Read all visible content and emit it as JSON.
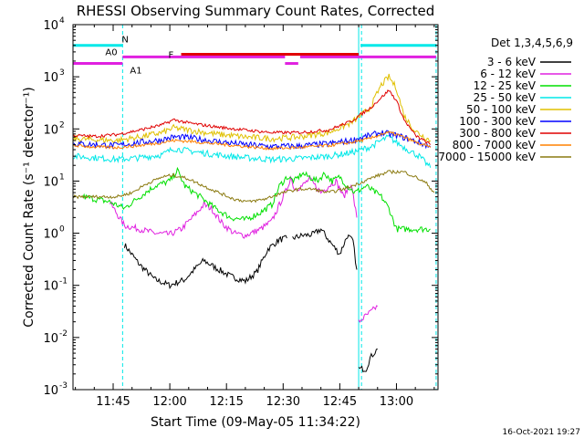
{
  "chart_data": {
    "type": "line",
    "title": "RHESSI Observing Summary Count Rates, Corrected",
    "xlabel": "Start Time (09-May-05 11:34:22)",
    "ylabel": "Corrected Count Rate (s⁻¹ detector⁻¹)",
    "y_scale": "log",
    "xlim": [
      "11:34:22",
      "13:11:00"
    ],
    "ylim": [
      0.001,
      10000
    ],
    "x_ticks": [
      "11:45",
      "12:00",
      "12:15",
      "12:30",
      "12:45",
      "13:00"
    ],
    "y_ticks": [
      {
        "value": 0.001,
        "base": "10",
        "exp": "-3"
      },
      {
        "value": 0.01,
        "base": "10",
        "exp": "-2"
      },
      {
        "value": 0.1,
        "base": "10",
        "exp": "-1"
      },
      {
        "value": 1,
        "base": "10",
        "exp": "0"
      },
      {
        "value": 10,
        "base": "10",
        "exp": "1"
      },
      {
        "value": 100,
        "base": "10",
        "exp": "2"
      },
      {
        "value": 1000,
        "base": "10",
        "exp": "3"
      },
      {
        "value": 10000,
        "base": "10",
        "exp": "4"
      }
    ],
    "legend_title": "Det 1,3,4,5,6,9",
    "legend_position": "right",
    "grid": false,
    "series": [
      {
        "name": "3 - 6 keV",
        "color": "#000000",
        "points": [
          [
            "11:48:00",
            0.6
          ],
          [
            "11:52:00",
            0.25
          ],
          [
            "11:56:00",
            0.13
          ],
          [
            "12:00:00",
            0.1
          ],
          [
            "12:04:00",
            0.13
          ],
          [
            "12:07:00",
            0.22
          ],
          [
            "12:09:00",
            0.3
          ],
          [
            "12:12:00",
            0.22
          ],
          [
            "12:16:00",
            0.15
          ],
          [
            "12:20:00",
            0.12
          ],
          [
            "12:23:00",
            0.18
          ],
          [
            "12:26:00",
            0.5
          ],
          [
            "12:29:00",
            0.75
          ],
          [
            "12:31:00",
            0.8
          ],
          [
            "null",
            null
          ],
          [
            "12:32:30",
            0.8
          ],
          [
            "12:35:00",
            0.9
          ],
          [
            "12:38:00",
            0.95
          ],
          [
            "12:40:00",
            1.2
          ],
          [
            "12:43:00",
            0.6
          ],
          [
            "12:45:00",
            0.4
          ],
          [
            "12:47:00",
            0.9
          ],
          [
            "12:48:30",
            0.7
          ],
          [
            "12:49:30",
            0.2
          ],
          [
            "null",
            null
          ],
          [
            "12:50:00",
            0.0025
          ],
          [
            "12:52:00",
            0.0025
          ],
          [
            "12:53:00",
            0.004
          ],
          [
            "12:54:00",
            0.005
          ],
          [
            "12:55:00",
            0.006
          ]
        ]
      },
      {
        "name": "6 - 12 keV",
        "color": "#e020e0",
        "points": [
          [
            "11:44:00",
            4.0
          ],
          [
            "11:48:00",
            1.4
          ],
          [
            "11:52:00",
            1.2
          ],
          [
            "11:56:00",
            1.0
          ],
          [
            "12:00:00",
            0.95
          ],
          [
            "12:03:00",
            1.2
          ],
          [
            "12:06:00",
            2.0
          ],
          [
            "12:09:00",
            3.5
          ],
          [
            "12:11:00",
            3.0
          ],
          [
            "12:14:00",
            1.5
          ],
          [
            "12:17:00",
            1.0
          ],
          [
            "12:20:00",
            0.9
          ],
          [
            "12:24:00",
            1.2
          ],
          [
            "12:27:00",
            1.7
          ],
          [
            "12:29:00",
            3.5
          ],
          [
            "12:31:00",
            7.0
          ],
          [
            "12:32:00",
            12.0
          ],
          [
            "12:33:00",
            7.0
          ],
          [
            "12:35:00",
            8.0
          ],
          [
            "12:37:00",
            11.0
          ],
          [
            "12:40:00",
            6.0
          ],
          [
            "12:42:00",
            8.0
          ],
          [
            "12:44:00",
            10.0
          ],
          [
            "12:46:00",
            5.0
          ],
          [
            "12:48:00",
            9.0
          ],
          [
            "12:49:30",
            2.0
          ],
          [
            "null",
            null
          ],
          [
            "12:50:00",
            0.02
          ],
          [
            "12:53:00",
            0.03
          ],
          [
            "12:55:00",
            0.04
          ]
        ]
      },
      {
        "name": "12 - 25 keV",
        "color": "#00e000",
        "points": [
          [
            "11:37:00",
            5.0
          ],
          [
            "11:44:00",
            4.0
          ],
          [
            "11:48:00",
            3.0
          ],
          [
            "11:52:00",
            5.0
          ],
          [
            "11:56:00",
            8.0
          ],
          [
            "12:00:00",
            10.0
          ],
          [
            "12:02:00",
            16.0
          ],
          [
            "12:04:00",
            8.0
          ],
          [
            "12:08:00",
            5.0
          ],
          [
            "12:12:00",
            3.0
          ],
          [
            "12:16:00",
            2.0
          ],
          [
            "12:20:00",
            1.8
          ],
          [
            "12:24:00",
            2.5
          ],
          [
            "12:27:00",
            3.5
          ],
          [
            "12:29:00",
            8.0
          ],
          [
            "12:31:00",
            12.0
          ],
          [
            "12:33:00",
            10.0
          ],
          [
            "12:35:00",
            14.0
          ],
          [
            "12:37:00",
            12.0
          ],
          [
            "12:39:00",
            10.0
          ],
          [
            "12:41:00",
            14.0
          ],
          [
            "12:43:00",
            10.0
          ],
          [
            "12:45:00",
            12.0
          ],
          [
            "12:47:00",
            8.0
          ],
          [
            "12:49:00",
            6.0
          ],
          [
            "12:52:00",
            8.0
          ],
          [
            "12:56:00",
            5.0
          ],
          [
            "12:58:00",
            3.0
          ],
          [
            "13:00:00",
            1.2
          ],
          [
            "13:09:00",
            1.2
          ]
        ]
      },
      {
        "name": "25 - 50 keV",
        "color": "#00e8e8",
        "points": [
          [
            "11:34:30",
            30
          ],
          [
            "11:40:00",
            28
          ],
          [
            "11:46:00",
            26
          ],
          [
            "11:52:00",
            28
          ],
          [
            "11:58:00",
            32
          ],
          [
            "12:01:00",
            42
          ],
          [
            "12:05:00",
            38
          ],
          [
            "12:12:00",
            32
          ],
          [
            "12:20:00",
            28
          ],
          [
            "12:27:00",
            26
          ],
          [
            "12:34:00",
            27
          ],
          [
            "12:42:00",
            30
          ],
          [
            "12:48:00",
            35
          ],
          [
            "12:53:00",
            45
          ],
          [
            "12:56:00",
            60
          ],
          [
            "12:58:00",
            70
          ],
          [
            "13:00:00",
            55
          ],
          [
            "13:03:00",
            40
          ],
          [
            "13:06:00",
            30
          ],
          [
            "13:09:00",
            18
          ]
        ]
      },
      {
        "name": "50 - 100 keV",
        "color": "#e0c000",
        "points": [
          [
            "11:34:30",
            65
          ],
          [
            "11:40:00",
            62
          ],
          [
            "11:46:00",
            60
          ],
          [
            "11:52:00",
            70
          ],
          [
            "11:58:00",
            85
          ],
          [
            "12:01:00",
            105
          ],
          [
            "12:05:00",
            95
          ],
          [
            "12:12:00",
            80
          ],
          [
            "12:20:00",
            70
          ],
          [
            "12:27:00",
            65
          ],
          [
            "12:34:00",
            70
          ],
          [
            "12:42:00",
            85
          ],
          [
            "12:48:00",
            130
          ],
          [
            "12:53:00",
            250
          ],
          [
            "12:56:00",
            700
          ],
          [
            "12:58:00",
            1000
          ],
          [
            "13:00:00",
            600
          ],
          [
            "13:02:00",
            180
          ],
          [
            "13:05:00",
            90
          ],
          [
            "13:09:00",
            60
          ]
        ]
      },
      {
        "name": "100 - 300 keV",
        "color": "#0000ff",
        "points": [
          [
            "11:34:30",
            52
          ],
          [
            "11:40:00",
            50
          ],
          [
            "11:46:00",
            48
          ],
          [
            "11:52:00",
            55
          ],
          [
            "11:58:00",
            62
          ],
          [
            "12:01:00",
            70
          ],
          [
            "12:05:00",
            68
          ],
          [
            "12:12:00",
            58
          ],
          [
            "12:20:00",
            50
          ],
          [
            "12:27:00",
            46
          ],
          [
            "12:34:00",
            47
          ],
          [
            "12:42:00",
            52
          ],
          [
            "12:48:00",
            60
          ],
          [
            "12:53:00",
            75
          ],
          [
            "12:56:00",
            85
          ],
          [
            "12:58:00",
            80
          ],
          [
            "13:00:00",
            75
          ],
          [
            "13:03:00",
            65
          ],
          [
            "13:06:00",
            55
          ],
          [
            "13:09:00",
            45
          ]
        ]
      },
      {
        "name": "300 - 800 keV",
        "color": "#e00000",
        "points": [
          [
            "11:34:30",
            75
          ],
          [
            "11:40:00",
            72
          ],
          [
            "11:46:00",
            78
          ],
          [
            "11:52:00",
            95
          ],
          [
            "11:58:00",
            120
          ],
          [
            "12:01:00",
            150
          ],
          [
            "12:05:00",
            130
          ],
          [
            "12:12:00",
            110
          ],
          [
            "12:20:00",
            95
          ],
          [
            "12:27:00",
            85
          ],
          [
            "12:34:00",
            85
          ],
          [
            "12:42:00",
            95
          ],
          [
            "12:48:00",
            140
          ],
          [
            "12:53:00",
            250
          ],
          [
            "12:56:00",
            400
          ],
          [
            "12:58:00",
            550
          ],
          [
            "13:00:00",
            350
          ],
          [
            "13:02:00",
            150
          ],
          [
            "13:05:00",
            75
          ],
          [
            "13:09:00",
            50
          ]
        ]
      },
      {
        "name": "800 - 7000 keV",
        "color": "#ff8000",
        "points": [
          [
            "11:34:30",
            48
          ],
          [
            "11:40:00",
            45
          ],
          [
            "11:46:00",
            44
          ],
          [
            "11:52:00",
            48
          ],
          [
            "11:58:00",
            55
          ],
          [
            "12:01:00",
            60
          ],
          [
            "12:05:00",
            58
          ],
          [
            "12:12:00",
            52
          ],
          [
            "12:20:00",
            46
          ],
          [
            "12:27:00",
            42
          ],
          [
            "12:34:00",
            44
          ],
          [
            "12:42:00",
            48
          ],
          [
            "12:48:00",
            55
          ],
          [
            "12:53:00",
            65
          ],
          [
            "12:56:00",
            80
          ],
          [
            "12:58:00",
            85
          ],
          [
            "13:00:00",
            78
          ],
          [
            "13:03:00",
            65
          ],
          [
            "13:06:00",
            52
          ],
          [
            "13:09:00",
            44
          ]
        ]
      },
      {
        "name": "7000 - 15000 keV",
        "color": "#8b7a10",
        "points": [
          [
            "11:34:30",
            5
          ],
          [
            "11:40:00",
            5
          ],
          [
            "11:46:00",
            5
          ],
          [
            "11:50:00",
            6
          ],
          [
            "11:54:00",
            9
          ],
          [
            "11:58:00",
            12
          ],
          [
            "12:01:00",
            13
          ],
          [
            "12:05:00",
            11
          ],
          [
            "12:09:00",
            8
          ],
          [
            "12:13:00",
            6
          ],
          [
            "12:17:00",
            4.5
          ],
          [
            "12:21:00",
            4
          ],
          [
            "12:25:00",
            4.5
          ],
          [
            "12:30:00",
            6
          ],
          [
            "12:34:00",
            7
          ],
          [
            "12:38:00",
            7
          ],
          [
            "12:42:00",
            6
          ],
          [
            "12:46:00",
            7
          ],
          [
            "12:50:00",
            9
          ],
          [
            "12:54:00",
            12
          ],
          [
            "12:58:00",
            15
          ],
          [
            "13:02:00",
            15
          ],
          [
            "13:05:00",
            12
          ],
          [
            "13:08:00",
            9
          ],
          [
            "13:10:00",
            6
          ]
        ]
      }
    ],
    "flags": [
      {
        "label": "N",
        "color": "#00e8e8",
        "y": 4000,
        "segments": [
          [
            "11:34:22",
            "11:47:30"
          ],
          [
            "12:50:30",
            "13:10:30"
          ]
        ]
      },
      {
        "label": "F",
        "color": "#e00000",
        "y": 2700,
        "segments": [
          [
            "12:03:00",
            "12:50:00"
          ]
        ]
      },
      {
        "label": "A0",
        "color": "#e020e0",
        "y": 2400,
        "segments": [
          [
            "11:47:30",
            "12:30:30"
          ],
          [
            "12:34:30",
            "13:10:30"
          ]
        ]
      },
      {
        "label": "A1",
        "color": "#e020e0",
        "y": 1800,
        "segments": [
          [
            "11:34:22",
            "11:47:30"
          ],
          [
            "12:30:30",
            "12:34:00"
          ]
        ]
      }
    ],
    "vlines": [
      {
        "t": "11:34:22",
        "style": "solid"
      },
      {
        "t": "11:47:30",
        "style": "dashed"
      },
      {
        "t": "12:50:00",
        "style": "solid"
      },
      {
        "t": "12:50:45",
        "style": "dashed"
      },
      {
        "t": "13:10:30",
        "style": "dashed"
      }
    ],
    "timestamp": "16-Oct-2021 19:27"
  }
}
